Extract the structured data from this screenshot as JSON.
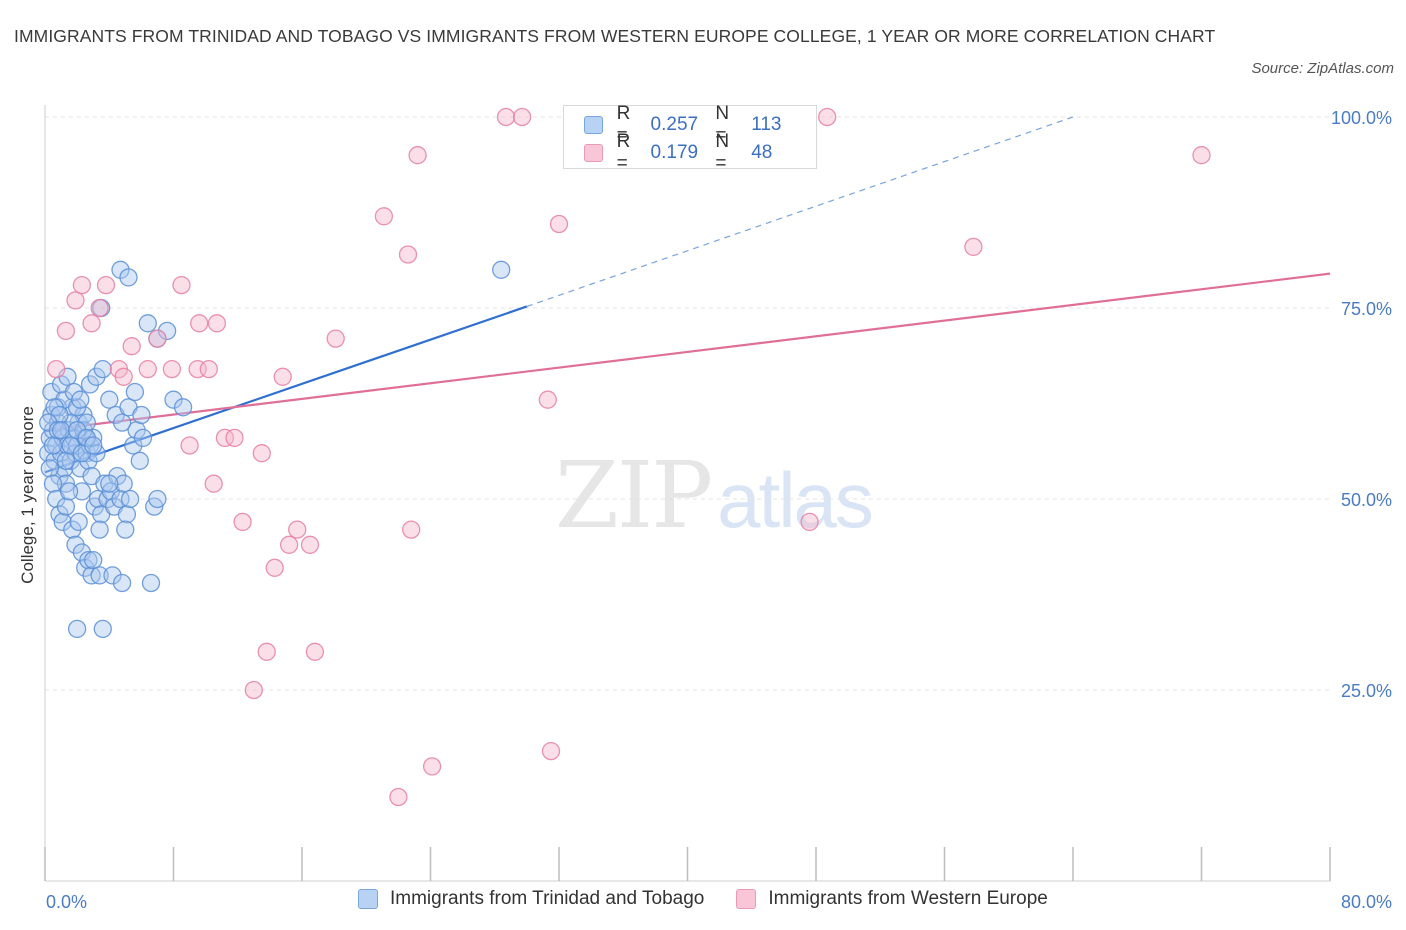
{
  "title": "IMMIGRANTS FROM TRINIDAD AND TOBAGO VS IMMIGRANTS FROM WESTERN EUROPE COLLEGE, 1 YEAR OR MORE CORRELATION CHART",
  "source": "Source: ZipAtlas.com",
  "watermark": {
    "zip": "ZIP",
    "atlas": "atlas"
  },
  "legend_stats": [
    {
      "r_label": "R =",
      "r_value": "0.257",
      "n_label": "N =",
      "n_value": "113"
    },
    {
      "r_label": "R =",
      "r_value": "0.179",
      "n_label": "N =",
      "n_value": "48"
    }
  ],
  "chart_data": {
    "type": "scatter",
    "title": "IMMIGRANTS FROM TRINIDAD AND TOBAGO VS IMMIGRANTS FROM WESTERN EUROPE COLLEGE, 1 YEAR OR MORE CORRELATION CHART",
    "xlabel": "",
    "ylabel": "College, 1 year or more",
    "xlim": [
      0,
      80
    ],
    "ylim": [
      0,
      105
    ],
    "x_tick_labels": [
      "0.0%",
      "80.0%"
    ],
    "y_ticks": [
      25,
      50,
      75,
      100
    ],
    "y_tick_labels": [
      "25.0%",
      "50.0%",
      "75.0%",
      "100.0%"
    ],
    "grid": true,
    "legend_placement": "top-center",
    "series": [
      {
        "name": "Immigrants from Trinidad and Tobago",
        "color": "#5b8fd6",
        "fill": "#aac8f0",
        "trend": {
          "x": [
            0,
            30
          ],
          "y": [
            53.5,
            75.2
          ],
          "dashed_to": [
            64,
            100
          ]
        },
        "points": [
          [
            0.2,
            56
          ],
          [
            0.3,
            58
          ],
          [
            0.4,
            61
          ],
          [
            0.5,
            59
          ],
          [
            0.6,
            55
          ],
          [
            0.7,
            57
          ],
          [
            0.8,
            60
          ],
          [
            0.9,
            53
          ],
          [
            1.0,
            56
          ],
          [
            1.1,
            58
          ],
          [
            1.2,
            54
          ],
          [
            1.3,
            52
          ],
          [
            1.4,
            57
          ],
          [
            1.5,
            59
          ],
          [
            1.6,
            55
          ],
          [
            1.7,
            62
          ],
          [
            1.8,
            58
          ],
          [
            1.9,
            56
          ],
          [
            2.0,
            57
          ],
          [
            2.1,
            60
          ],
          [
            2.2,
            54
          ],
          [
            2.3,
            51
          ],
          [
            2.4,
            61
          ],
          [
            2.5,
            58
          ],
          [
            2.6,
            56
          ],
          [
            2.7,
            55
          ],
          [
            2.8,
            57
          ],
          [
            2.9,
            53
          ],
          [
            3.0,
            58
          ],
          [
            3.2,
            56
          ],
          [
            0.3,
            54
          ],
          [
            0.5,
            52
          ],
          [
            0.7,
            50
          ],
          [
            0.9,
            48
          ],
          [
            1.1,
            47
          ],
          [
            1.3,
            49
          ],
          [
            1.5,
            51
          ],
          [
            1.7,
            46
          ],
          [
            1.9,
            44
          ],
          [
            2.1,
            47
          ],
          [
            2.3,
            43
          ],
          [
            2.5,
            41
          ],
          [
            2.7,
            42
          ],
          [
            2.9,
            40
          ],
          [
            3.1,
            49
          ],
          [
            3.3,
            50
          ],
          [
            3.5,
            48
          ],
          [
            3.7,
            52
          ],
          [
            3.9,
            50
          ],
          [
            4.1,
            51
          ],
          [
            4.3,
            49
          ],
          [
            4.5,
            53
          ],
          [
            4.7,
            50
          ],
          [
            4.9,
            52
          ],
          [
            5.1,
            48
          ],
          [
            5.3,
            50
          ],
          [
            5.5,
            57
          ],
          [
            5.7,
            59
          ],
          [
            5.9,
            55
          ],
          [
            6.1,
            58
          ],
          [
            0.4,
            64
          ],
          [
            0.8,
            62
          ],
          [
            1.2,
            63
          ],
          [
            1.6,
            60
          ],
          [
            2.0,
            62
          ],
          [
            2.4,
            59
          ],
          [
            2.8,
            65
          ],
          [
            3.2,
            66
          ],
          [
            3.6,
            67
          ],
          [
            4.0,
            63
          ],
          [
            4.4,
            61
          ],
          [
            4.8,
            60
          ],
          [
            5.2,
            62
          ],
          [
            5.6,
            64
          ],
          [
            6.0,
            61
          ],
          [
            6.4,
            73
          ],
          [
            7.0,
            71
          ],
          [
            7.6,
            72
          ],
          [
            8.0,
            63
          ],
          [
            8.6,
            62
          ],
          [
            4.7,
            80
          ],
          [
            5.2,
            79
          ],
          [
            3.5,
            75
          ],
          [
            1.0,
            65
          ],
          [
            1.4,
            66
          ],
          [
            0.6,
            62
          ],
          [
            0.9,
            61
          ],
          [
            1.8,
            64
          ],
          [
            2.2,
            63
          ],
          [
            2.6,
            60
          ],
          [
            3.0,
            42
          ],
          [
            3.4,
            40
          ],
          [
            4.2,
            40
          ],
          [
            4.8,
            39
          ],
          [
            5.0,
            46
          ],
          [
            6.8,
            49
          ],
          [
            7.0,
            50
          ],
          [
            6.6,
            39
          ],
          [
            2.0,
            33
          ],
          [
            3.6,
            33
          ],
          [
            0.2,
            60
          ],
          [
            0.5,
            57
          ],
          [
            0.8,
            59
          ],
          [
            1.0,
            59
          ],
          [
            1.3,
            55
          ],
          [
            1.6,
            57
          ],
          [
            2.0,
            59
          ],
          [
            2.3,
            56
          ],
          [
            2.6,
            58
          ],
          [
            3.0,
            57
          ],
          [
            28.4,
            80
          ],
          [
            3.4,
            46
          ],
          [
            4.0,
            52
          ]
        ]
      },
      {
        "name": "Immigrants from Western Europe",
        "color": "#e67fa3",
        "fill": "#f5b9cd",
        "trend": {
          "x": [
            0,
            80
          ],
          "y": [
            59,
            79.5
          ]
        },
        "points": [
          [
            0.7,
            67
          ],
          [
            1.3,
            72
          ],
          [
            1.9,
            76
          ],
          [
            2.3,
            78
          ],
          [
            2.9,
            73
          ],
          [
            3.4,
            75
          ],
          [
            3.8,
            78
          ],
          [
            4.6,
            67
          ],
          [
            4.9,
            66
          ],
          [
            5.4,
            70
          ],
          [
            6.4,
            67
          ],
          [
            7.0,
            71
          ],
          [
            7.9,
            67
          ],
          [
            8.5,
            78
          ],
          [
            9.5,
            67
          ],
          [
            10.2,
            67
          ],
          [
            10.7,
            73
          ],
          [
            9.0,
            57
          ],
          [
            10.5,
            52
          ],
          [
            11.2,
            58
          ],
          [
            11.8,
            58
          ],
          [
            12.3,
            47
          ],
          [
            13.0,
            25
          ],
          [
            13.5,
            56
          ],
          [
            13.8,
            30
          ],
          [
            14.3,
            41
          ],
          [
            14.8,
            66
          ],
          [
            15.2,
            44
          ],
          [
            15.7,
            46
          ],
          [
            16.5,
            44
          ],
          [
            16.8,
            30
          ],
          [
            18.1,
            71
          ],
          [
            21.1,
            87
          ],
          [
            22.0,
            11
          ],
          [
            22.6,
            82
          ],
          [
            22.8,
            46
          ],
          [
            23.2,
            95
          ],
          [
            24.1,
            15
          ],
          [
            28.7,
            100
          ],
          [
            29.7,
            100
          ],
          [
            31.3,
            63
          ],
          [
            31.5,
            17
          ],
          [
            32.0,
            86
          ],
          [
            47.6,
            47
          ],
          [
            48.7,
            100
          ],
          [
            57.8,
            83
          ],
          [
            72.0,
            95
          ],
          [
            9.6,
            73
          ]
        ]
      }
    ]
  }
}
